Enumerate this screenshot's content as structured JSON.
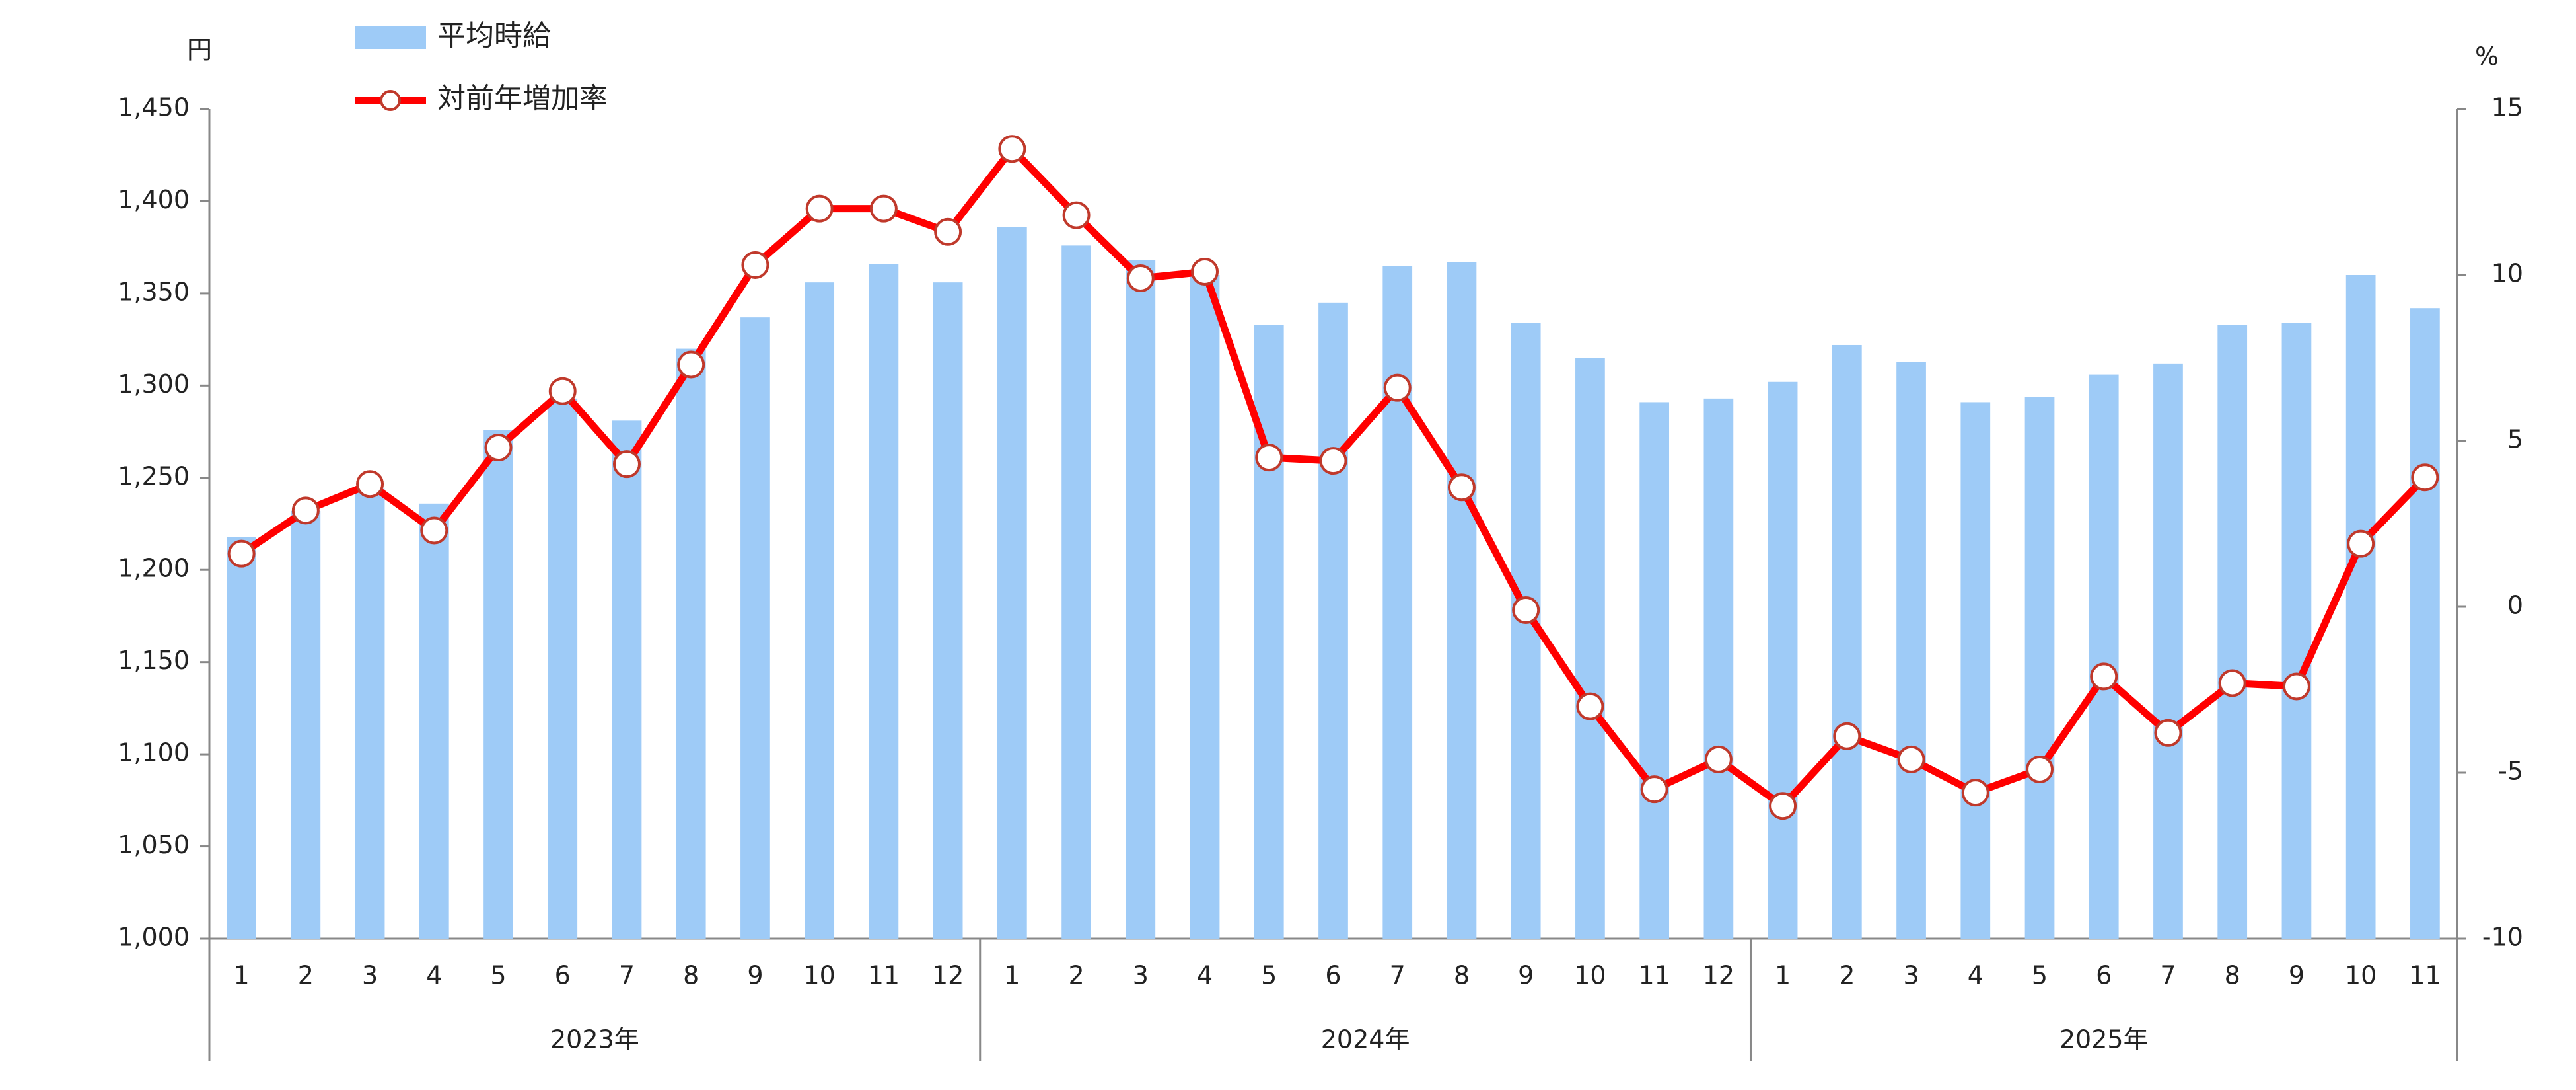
{
  "chart_data": {
    "type": "bar",
    "y_label": "円",
    "y2_label": "%",
    "categories": [
      "1",
      "2",
      "3",
      "4",
      "5",
      "6",
      "7",
      "8",
      "9",
      "10",
      "11",
      "12",
      "1",
      "2",
      "3",
      "4",
      "5",
      "6",
      "7",
      "8",
      "9",
      "10",
      "11",
      "12",
      "1",
      "2",
      "3",
      "4",
      "5",
      "6",
      "7",
      "8",
      "9",
      "10",
      "11"
    ],
    "year_groups": [
      "2023年",
      "2024年",
      "2025年"
    ],
    "series": [
      {
        "name": "平均時給",
        "type": "bar",
        "color": "#9ecbf7",
        "values": [
          1218,
          1232,
          1244,
          1236,
          1276,
          1293,
          1281,
          1320,
          1337,
          1356,
          1366,
          1356,
          1386,
          1376,
          1368,
          1360,
          1333,
          1345,
          1365,
          1367,
          1334,
          1315,
          1291,
          1293,
          1302,
          1322,
          1313,
          1291,
          1294,
          1306,
          1312,
          1333,
          1334,
          1360,
          1342
        ]
      },
      {
        "name": "対前年増加率",
        "type": "line",
        "axis": "y2",
        "color": "#ff0000",
        "values": [
          1.6,
          2.9,
          3.7,
          2.3,
          4.8,
          6.5,
          4.3,
          7.3,
          10.3,
          12.0,
          12.0,
          11.3,
          13.8,
          11.8,
          9.9,
          10.1,
          4.5,
          4.4,
          6.6,
          3.6,
          -0.1,
          -3.0,
          -5.5,
          -4.6,
          -6.0,
          -3.9,
          -4.6,
          -5.6,
          -4.9,
          -2.1,
          -3.8,
          -2.3,
          -2.4,
          1.9,
          3.9
        ]
      }
    ],
    "ylim": [
      1000,
      1450
    ],
    "yticks": [
      {
        "value": 1000,
        "label": "1,000"
      },
      {
        "value": 1050,
        "label": "1,050"
      },
      {
        "value": 1100,
        "label": "1,100"
      },
      {
        "value": 1150,
        "label": "1,150"
      },
      {
        "value": 1200,
        "label": "1,200"
      },
      {
        "value": 1250,
        "label": "1,250"
      },
      {
        "value": 1300,
        "label": "1,300"
      },
      {
        "value": 1350,
        "label": "1,350"
      },
      {
        "value": 1400,
        "label": "1,400"
      },
      {
        "value": 1450,
        "label": "1,450"
      }
    ],
    "y2lim": [
      -10,
      15
    ],
    "y2ticks": [
      -10,
      -5,
      0,
      5,
      10,
      15
    ],
    "grid": false
  }
}
